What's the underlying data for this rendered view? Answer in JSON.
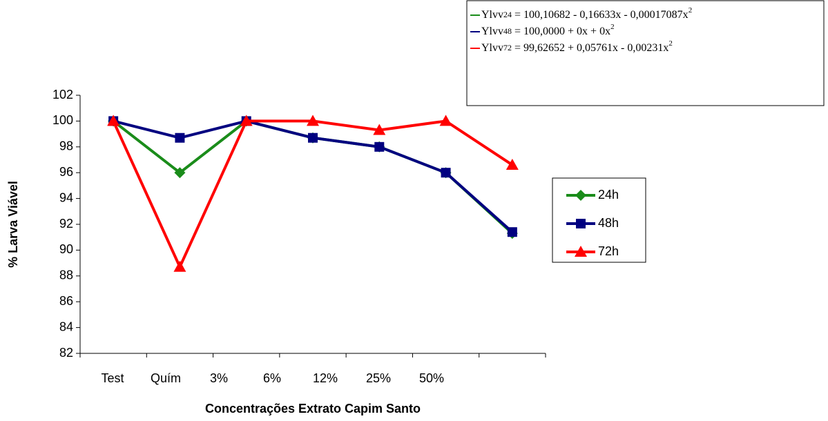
{
  "chart_data": {
    "type": "line",
    "xlabel": "Concentrações Extrato Capim Santo",
    "ylabel": "% Larva Viável",
    "categories": [
      "Test",
      "Quím",
      "3%",
      "6%",
      "12%",
      "25%",
      "50%"
    ],
    "series": [
      {
        "name": "24h",
        "color": "#1a8c1a",
        "marker": "diamond",
        "values": [
          100,
          96,
          100,
          98.7,
          98,
          96,
          91.3
        ]
      },
      {
        "name": "48h",
        "color": "#000080",
        "marker": "square",
        "values": [
          100,
          98.7,
          100,
          98.7,
          98,
          96,
          91.4
        ]
      },
      {
        "name": "72h",
        "color": "#ff0000",
        "marker": "triangle",
        "values": [
          100,
          88.7,
          100,
          100,
          99.3,
          100,
          96.6
        ]
      }
    ],
    "ylim": [
      82,
      102
    ],
    "yticks": [
      82,
      84,
      86,
      88,
      90,
      92,
      94,
      96,
      98,
      100,
      102
    ],
    "grid": false,
    "legend": "right",
    "annotations": [
      {
        "name": "Ylvv",
        "sub": "24",
        "body": " = 100,10682 - 0,16633x - 0,00017087x",
        "sup": "2",
        "color": "#1a8c1a"
      },
      {
        "name": "Ylvv",
        "sub": "48",
        "body": " = 100,0000 + 0x + 0x",
        "sup": "2",
        "color": "#000080"
      },
      {
        "name": "Ylvv",
        "sub": "72",
        "body": " = 99,62652 + 0,05761x - 0,00231x",
        "sup": "2",
        "color": "#ff0000"
      }
    ]
  }
}
